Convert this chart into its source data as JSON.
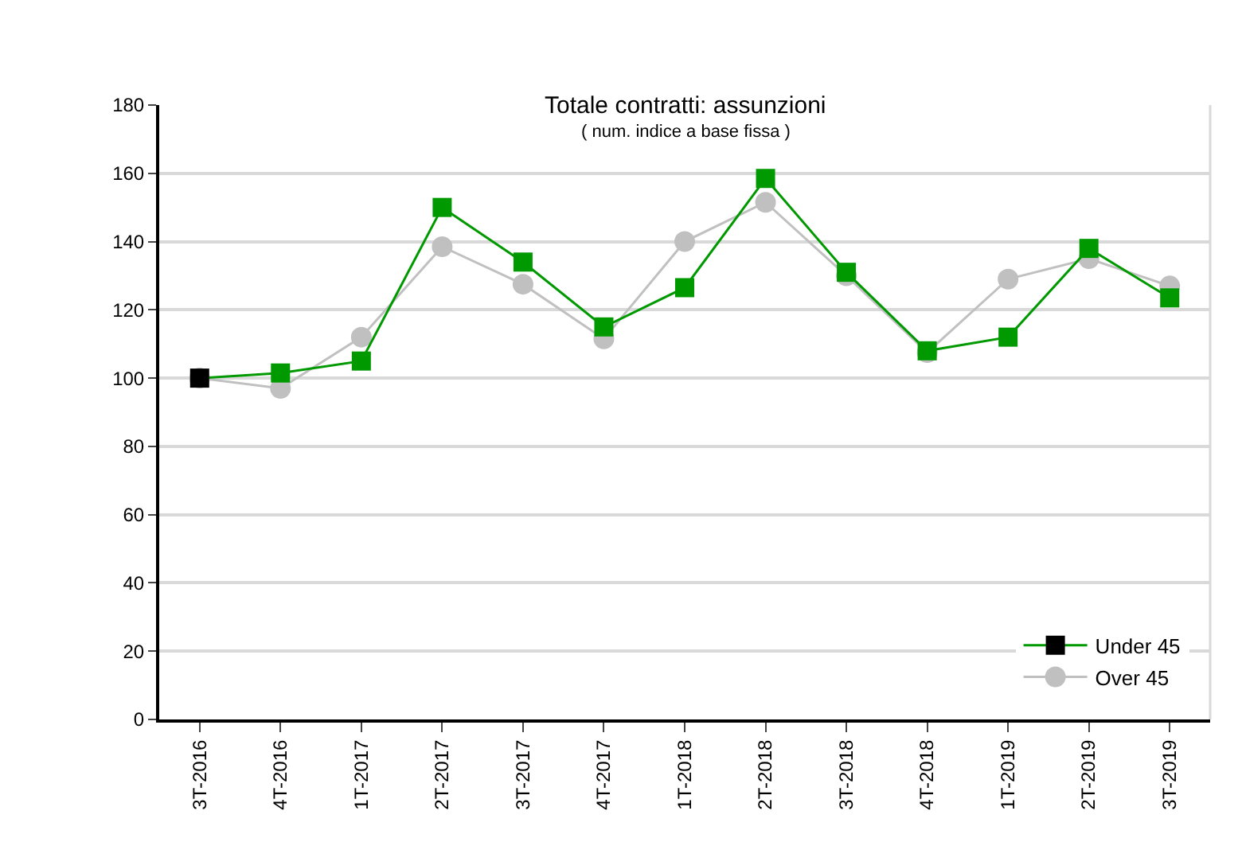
{
  "chart_data": {
    "type": "line",
    "title": "Totale contratti: assunzioni",
    "subtitle": "( num. indice a base fissa )",
    "categories": [
      "3T-2016",
      "4T-2016",
      "1T-2017",
      "2T-2017",
      "3T-2017",
      "4T-2017",
      "1T-2018",
      "2T-2018",
      "3T-2018",
      "4T-2018",
      "1T-2019",
      "2T-2019",
      "3T-2019"
    ],
    "series": [
      {
        "name": "Under 45",
        "color": "#009900",
        "marker": "square",
        "colors": [
          "#000000",
          "#009900",
          "#009900",
          "#009900",
          "#009900",
          "#009900",
          "#009900",
          "#009900",
          "#009900",
          "#009900",
          "#009900",
          "#009900",
          "#009900"
        ],
        "values": [
          100,
          101.5,
          105,
          150,
          134,
          115,
          126.5,
          158.5,
          131,
          108,
          112,
          138,
          123.5
        ]
      },
      {
        "name": "Over 45",
        "color": "#c0c0c0",
        "marker": "circle",
        "values": [
          100,
          97,
          112,
          138.5,
          127.5,
          111.5,
          140,
          151.5,
          130,
          107.5,
          129,
          135,
          127
        ]
      }
    ],
    "ylim": [
      0,
      180
    ],
    "yticks": [
      0,
      20,
      40,
      60,
      80,
      100,
      120,
      140,
      160,
      180
    ],
    "grid": "y",
    "legend": "bottom right",
    "line_style": "solid"
  }
}
